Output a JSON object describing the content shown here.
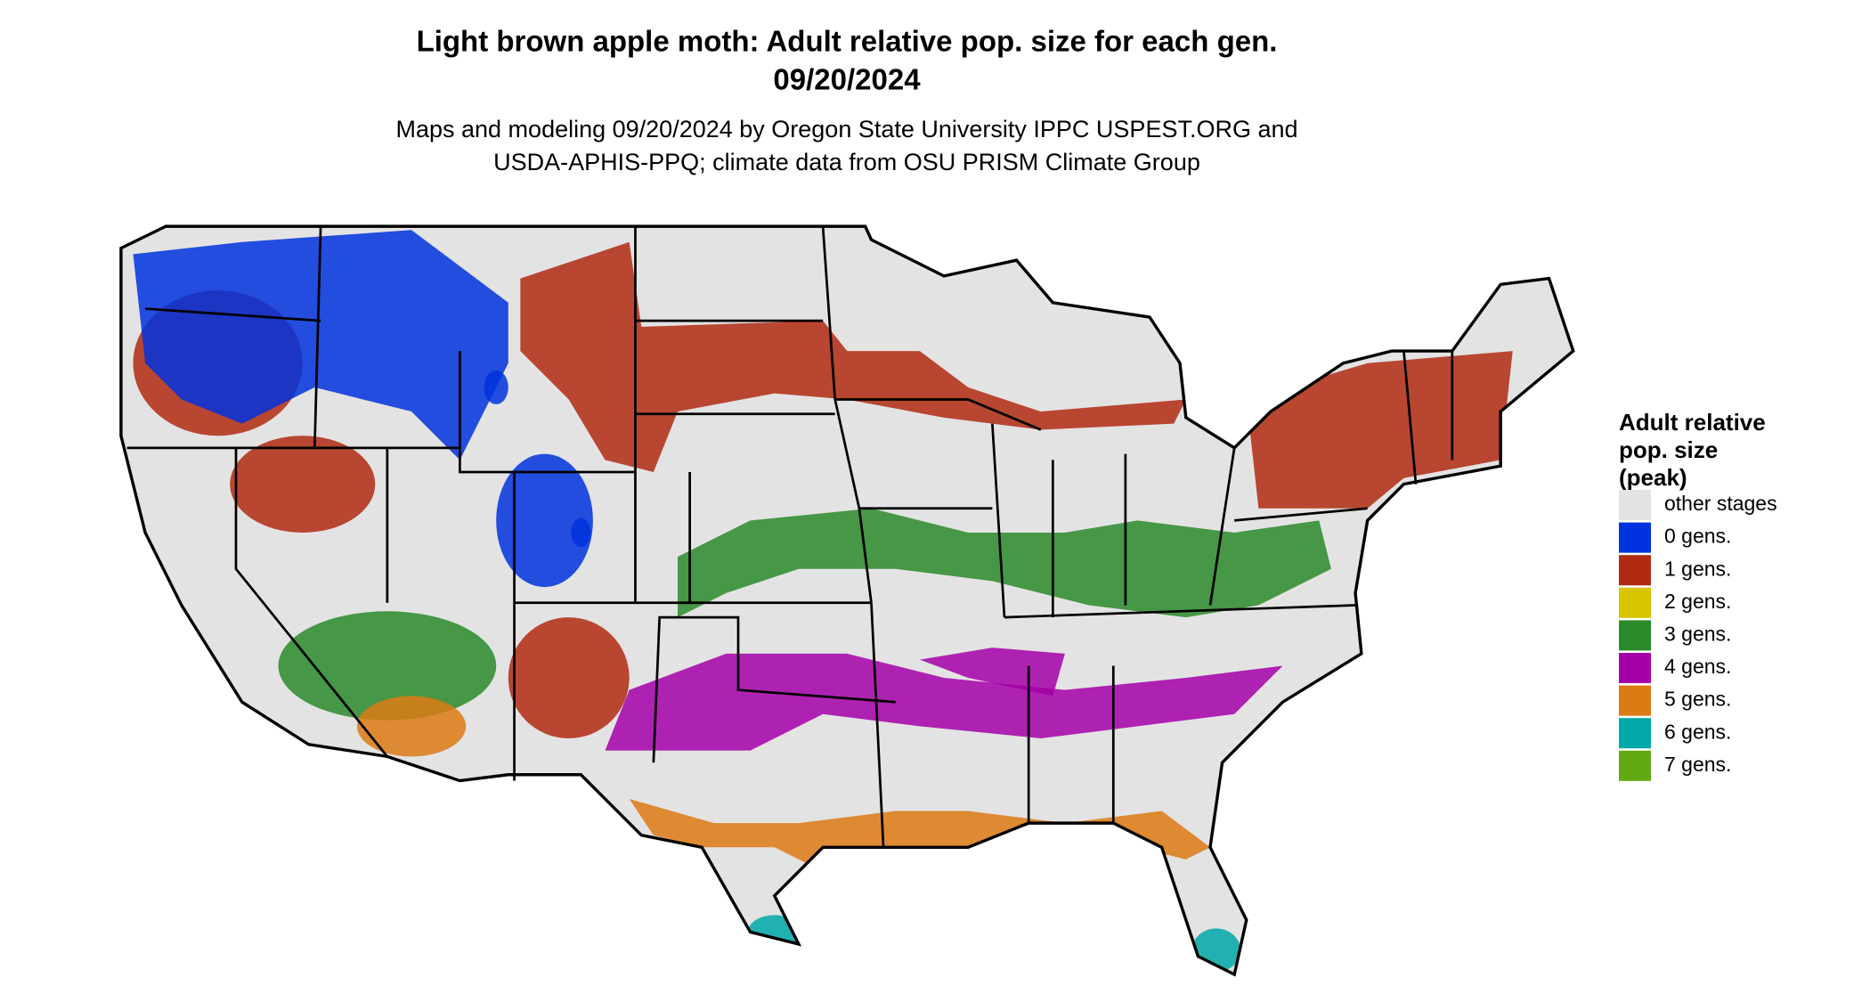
{
  "title": [
    "Light brown apple moth: Adult relative pop. size for each gen.",
    "09/20/2024"
  ],
  "subtitle": [
    "Maps and modeling 09/20/2024 by Oregon State University IPPC USPEST.ORG and",
    "USDA-APHIS-PPQ; climate data from OSU PRISM Climate Group"
  ],
  "legend": {
    "title": [
      "Adult relative",
      "pop. size",
      "(peak)"
    ],
    "items": [
      {
        "label": "other stages",
        "color": "#e3e3e3"
      },
      {
        "label": "0 gens.",
        "color": "#0033dd"
      },
      {
        "label": "1 gens.",
        "color": "#b02a12"
      },
      {
        "label": "2 gens.",
        "color": "#d9c400"
      },
      {
        "label": "3 gens.",
        "color": "#2a8a2a"
      },
      {
        "label": "4 gens.",
        "color": "#a400a8"
      },
      {
        "label": "5 gens.",
        "color": "#dc7a14"
      },
      {
        "label": "6 gens.",
        "color": "#00a8a8"
      },
      {
        "label": "7 gens.",
        "color": "#62a812"
      }
    ]
  }
}
